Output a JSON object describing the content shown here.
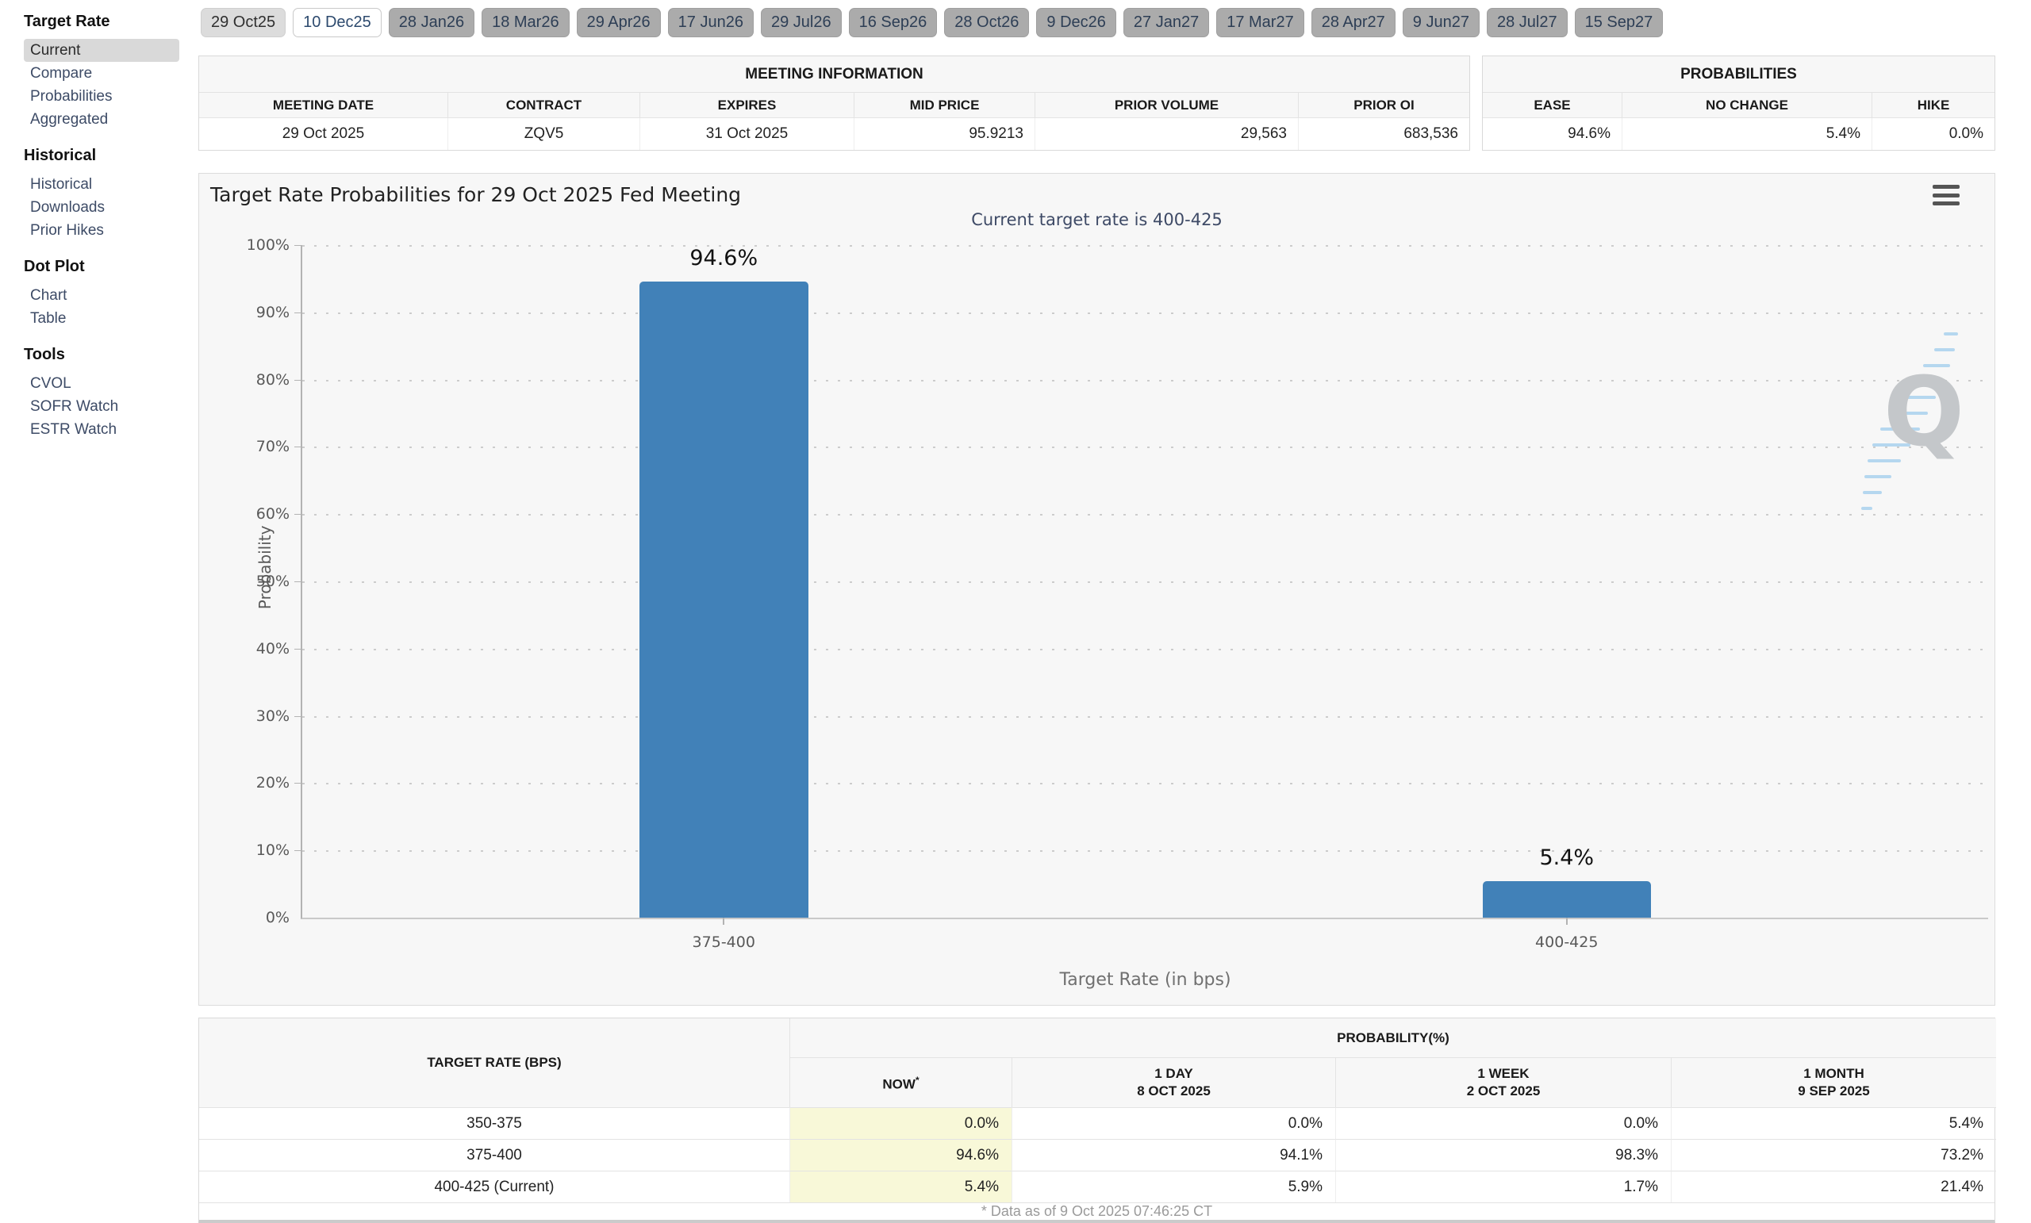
{
  "meeting_tabs": [
    "29 Oct25",
    "10 Dec25",
    "28 Jan26",
    "18 Mar26",
    "29 Apr26",
    "17 Jun26",
    "29 Jul26",
    "16 Sep26",
    "28 Oct26",
    "9 Dec26",
    "27 Jan27",
    "17 Mar27",
    "28 Apr27",
    "9 Jun27",
    "28 Jul27",
    "15 Sep27"
  ],
  "sidebar": {
    "sections": [
      {
        "title": "Target Rate",
        "items": [
          "Current",
          "Compare",
          "Probabilities",
          "Aggregated"
        ]
      },
      {
        "title": "Historical",
        "items": [
          "Historical",
          "Downloads",
          "Prior Hikes"
        ]
      },
      {
        "title": "Dot Plot",
        "items": [
          "Chart",
          "Table"
        ]
      },
      {
        "title": "Tools",
        "items": [
          "CVOL",
          "SOFR Watch",
          "ESTR Watch"
        ]
      }
    ],
    "selected_item": "Current"
  },
  "meeting_info": {
    "title": "MEETING INFORMATION",
    "columns": [
      "MEETING DATE",
      "CONTRACT",
      "EXPIRES",
      "MID PRICE",
      "PRIOR VOLUME",
      "PRIOR OI"
    ],
    "row": {
      "meeting_date": "29 Oct 2025",
      "contract": "ZQV5",
      "expires": "31 Oct 2025",
      "mid_price": "95.9213",
      "prior_volume": "29,563",
      "prior_oi": "683,536"
    }
  },
  "probabilities_panel": {
    "title": "PROBABILITIES",
    "columns": [
      "EASE",
      "NO CHANGE",
      "HIKE"
    ],
    "row": {
      "ease": "94.6%",
      "no_change": "5.4%",
      "hike": "0.0%"
    }
  },
  "chart_data": {
    "type": "bar",
    "title": "Target Rate Probabilities for 29 Oct 2025 Fed Meeting",
    "subtitle": "Current target rate is 400-425",
    "categories": [
      "375-400",
      "400-425"
    ],
    "values": [
      94.6,
      5.4
    ],
    "value_labels": [
      "94.6%",
      "5.4%"
    ],
    "xlabel": "Target Rate (in bps)",
    "ylabel": "Probability",
    "ylim": [
      0,
      100
    ],
    "yticks": [
      "100%",
      "90%",
      "80%",
      "70%",
      "60%",
      "50%",
      "40%",
      "30%",
      "20%",
      "10%",
      "0%"
    ],
    "grid": "dotted horizontal",
    "legend": "none",
    "bar_color": "#4181b8",
    "watermark": "Q"
  },
  "probability_table": {
    "col_group_left": "TARGET RATE (BPS)",
    "col_group_right": "PROBABILITY(%)",
    "sub_columns": [
      {
        "line1": "NOW",
        "sup": "*",
        "line2": ""
      },
      {
        "line1": "1 DAY",
        "line2": "8 OCT 2025"
      },
      {
        "line1": "1 WEEK",
        "line2": "2 OCT 2025"
      },
      {
        "line1": "1 MONTH",
        "line2": "9 SEP 2025"
      }
    ],
    "rows": [
      {
        "target_rate": "350-375",
        "now": "0.0%",
        "day": "0.0%",
        "week": "0.0%",
        "month": "5.4%"
      },
      {
        "target_rate": "375-400",
        "now": "94.6%",
        "day": "94.1%",
        "week": "98.3%",
        "month": "73.2%"
      },
      {
        "target_rate": "400-425 (Current)",
        "now": "5.4%",
        "day": "5.9%",
        "week": "1.7%",
        "month": "21.4%"
      }
    ],
    "footnote": "* Data as of 9 Oct 2025 07:46:25 CT"
  }
}
